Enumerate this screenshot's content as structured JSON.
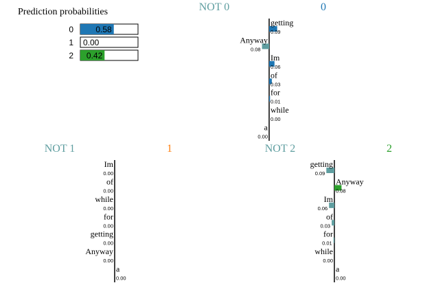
{
  "colors": {
    "class_0": "#1f77b4",
    "class_1": "#ff7f0e",
    "class_2": "#2ca02c",
    "not": "#5f9ea0",
    "axis": "#000000",
    "text": "#000000"
  },
  "chart_data": [
    {
      "type": "bar",
      "title": "Prediction probabilities",
      "categories": [
        "0",
        "1",
        "2"
      ],
      "values": [
        0.58,
        0.0,
        0.42
      ],
      "value_labels": [
        "0.58",
        "0.00",
        "0.42"
      ],
      "xlim": [
        0,
        1
      ]
    },
    {
      "type": "bar",
      "class_index": 0,
      "left_label": "NOT 0",
      "right_label": "0",
      "bar_colors": [
        "class",
        "not"
      ],
      "words": [
        "getting",
        "Anyway",
        "Im",
        "of",
        "for",
        "while",
        "a"
      ],
      "values": [
        0.09,
        -0.08,
        0.06,
        0.03,
        0.01,
        0.0,
        -0.0
      ],
      "value_labels": [
        "0.09",
        "0.08",
        "0.06",
        "0.03",
        "0.01",
        "0.00",
        "0.00"
      ]
    },
    {
      "type": "bar",
      "class_index": 1,
      "left_label": "NOT 1",
      "right_label": "1",
      "words": [
        "Im",
        "of",
        "while",
        "for",
        "getting",
        "Anyway",
        "a"
      ],
      "values": [
        -0.0,
        -0.0,
        -0.0,
        -0.0,
        -0.0,
        -0.0,
        0.0
      ],
      "value_labels": [
        "0.00",
        "0.00",
        "0.00",
        "0.00",
        "0.00",
        "0.00",
        "0.00"
      ]
    },
    {
      "type": "bar",
      "class_index": 2,
      "left_label": "NOT 2",
      "right_label": "2",
      "words": [
        "getting",
        "Anyway",
        "Im",
        "of",
        "for",
        "while",
        "a"
      ],
      "values": [
        -0.09,
        0.08,
        -0.06,
        -0.03,
        -0.01,
        -0.0,
        0.0
      ],
      "value_labels": [
        "0.09",
        "0.08",
        "0.06",
        "0.03",
        "0.01",
        "0.00",
        "0.00"
      ]
    }
  ]
}
